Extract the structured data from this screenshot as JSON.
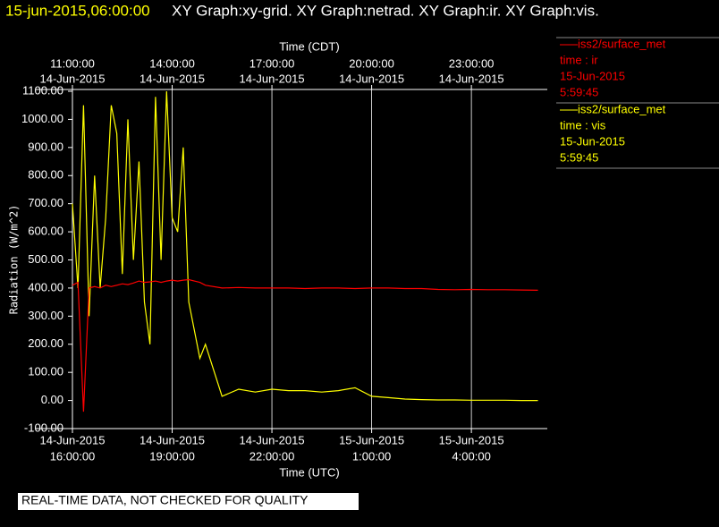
{
  "chart_data": {
    "type": "line",
    "timestamp": "15-jun-2015,06:00:00",
    "title": "XY Graph:xy-grid.  XY Graph:netrad.  XY Graph:ir.  XY Graph:vis.",
    "x_label": "Time (UTC)",
    "x2_label": "Time (CDT)",
    "y_label": "Radiation (W/m^2)",
    "note": "REAL-TIME DATA, NOT CHECKED FOR QUALITY",
    "grid": "x",
    "xlim": [
      "2015-06-14T16:00",
      "2015-06-15T06:17"
    ],
    "ylim": [
      -100,
      1100
    ],
    "xticks": [
      {
        "value": "2015-06-14T16:00",
        "label": [
          "14-Jun-2015",
          "16:00:00"
        ]
      },
      {
        "value": "2015-06-14T19:00",
        "label": [
          "14-Jun-2015",
          "19:00:00"
        ]
      },
      {
        "value": "2015-06-14T22:00",
        "label": [
          "14-Jun-2015",
          "22:00:00"
        ]
      },
      {
        "value": "2015-06-15T01:00",
        "label": [
          "15-Jun-2015",
          "1:00:00"
        ]
      },
      {
        "value": "2015-06-15T04:00",
        "label": [
          "15-Jun-2015",
          "4:00:00"
        ]
      }
    ],
    "x2ticks": [
      {
        "value": "2015-06-14T16:00",
        "label": [
          "11:00:00",
          "14-Jun-2015"
        ]
      },
      {
        "value": "2015-06-14T19:00",
        "label": [
          "14:00:00",
          "14-Jun-2015"
        ]
      },
      {
        "value": "2015-06-14T22:00",
        "label": [
          "17:00:00",
          "14-Jun-2015"
        ]
      },
      {
        "value": "2015-06-15T01:00",
        "label": [
          "20:00:00",
          "14-Jun-2015"
        ]
      },
      {
        "value": "2015-06-15T04:00",
        "label": [
          "23:00:00",
          "14-Jun-2015"
        ]
      }
    ],
    "yticks": [
      {
        "value": 1100,
        "label": "1100.00"
      },
      {
        "value": 1000,
        "label": "1000.00"
      },
      {
        "value": 900,
        "label": "900.00"
      },
      {
        "value": 800,
        "label": "800.00"
      },
      {
        "value": 700,
        "label": "700.00"
      },
      {
        "value": 600,
        "label": "600.00"
      },
      {
        "value": 500,
        "label": "500.00"
      },
      {
        "value": 400,
        "label": "400.00"
      },
      {
        "value": 300,
        "label": "300.00"
      },
      {
        "value": 200,
        "label": "200.00"
      },
      {
        "value": 100,
        "label": "100.00"
      },
      {
        "value": 0,
        "label": "0.00"
      },
      {
        "value": -100,
        "label": "-100.00"
      }
    ],
    "x": [
      "2015-06-14T16:00",
      "2015-06-14T16:10",
      "2015-06-14T16:20",
      "2015-06-14T16:30",
      "2015-06-14T16:40",
      "2015-06-14T16:50",
      "2015-06-14T17:00",
      "2015-06-14T17:10",
      "2015-06-14T17:20",
      "2015-06-14T17:30",
      "2015-06-14T17:40",
      "2015-06-14T17:50",
      "2015-06-14T18:00",
      "2015-06-14T18:10",
      "2015-06-14T18:20",
      "2015-06-14T18:30",
      "2015-06-14T18:40",
      "2015-06-14T18:50",
      "2015-06-14T19:00",
      "2015-06-14T19:10",
      "2015-06-14T19:20",
      "2015-06-14T19:30",
      "2015-06-14T19:40",
      "2015-06-14T19:50",
      "2015-06-14T20:00",
      "2015-06-14T20:30",
      "2015-06-14T21:00",
      "2015-06-14T21:30",
      "2015-06-14T22:00",
      "2015-06-14T22:30",
      "2015-06-14T23:00",
      "2015-06-14T23:30",
      "2015-06-15T00:00",
      "2015-06-15T00:30",
      "2015-06-15T01:00",
      "2015-06-15T01:30",
      "2015-06-15T02:00",
      "2015-06-15T02:30",
      "2015-06-15T03:00",
      "2015-06-15T03:30",
      "2015-06-15T04:00",
      "2015-06-15T04:30",
      "2015-06-15T05:00",
      "2015-06-15T05:30",
      "2015-06-15T06:00"
    ],
    "series": [
      {
        "name": "iss2/surface_met",
        "legend_lines": [
          "time : ir",
          "15-Jun-2015",
          "5:59:45"
        ],
        "color": "#ff0000",
        "values": [
          410,
          420,
          -40,
          400,
          405,
          400,
          410,
          405,
          410,
          415,
          412,
          418,
          425,
          420,
          422,
          425,
          420,
          425,
          428,
          425,
          428,
          430,
          425,
          420,
          410,
          400,
          402,
          400,
          400,
          400,
          398,
          400,
          400,
          398,
          400,
          400,
          398,
          398,
          395,
          394,
          395,
          394,
          394,
          393,
          392
        ]
      },
      {
        "name": "iss2/surface_met",
        "legend_lines": [
          "time : vis",
          "15-Jun-2015",
          "5:59:45"
        ],
        "color": "#ffff00",
        "values": [
          700,
          400,
          1050,
          300,
          800,
          400,
          650,
          1050,
          950,
          450,
          1000,
          500,
          850,
          350,
          200,
          1080,
          500,
          1100,
          650,
          600,
          900,
          350,
          250,
          150,
          200,
          15,
          40,
          30,
          40,
          35,
          35,
          30,
          35,
          45,
          15,
          10,
          5,
          3,
          2,
          2,
          1,
          1,
          1,
          0,
          0
        ]
      }
    ]
  }
}
